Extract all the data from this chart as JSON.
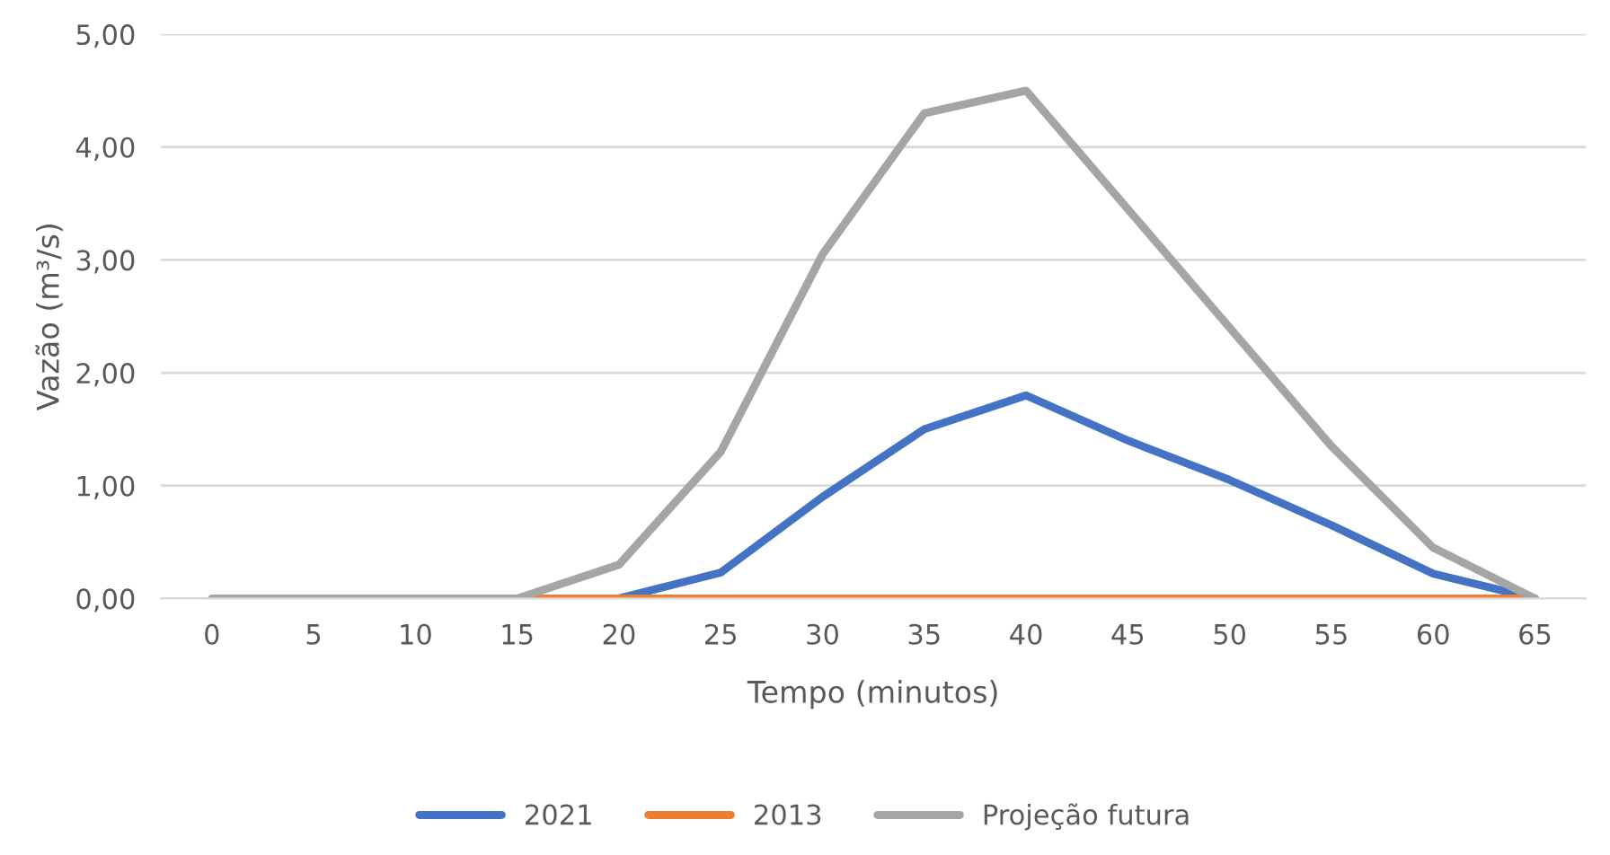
{
  "chart_data": {
    "type": "line",
    "xlabel": "Tempo (minutos)",
    "ylabel": "Vazão (m³/s)",
    "categories": [
      "0",
      "5",
      "10",
      "15",
      "20",
      "25",
      "30",
      "35",
      "40",
      "45",
      "50",
      "55",
      "60",
      "65"
    ],
    "series": [
      {
        "name": "2021",
        "color": "#4472c4",
        "values": [
          null,
          null,
          null,
          0,
          0,
          0.23,
          0.9,
          1.5,
          1.8,
          1.4,
          1.05,
          0.65,
          0.22,
          0
        ]
      },
      {
        "name": "2013",
        "color": "#ed7d31",
        "values": [
          null,
          null,
          null,
          0,
          0,
          0,
          0,
          0,
          0,
          0,
          0,
          0,
          0,
          0
        ]
      },
      {
        "name": "Projeção futura",
        "color": "#a5a5a5",
        "values": [
          0,
          0,
          0,
          0,
          0.3,
          1.3,
          3.05,
          4.3,
          4.5,
          3.45,
          2.4,
          1.35,
          0.45,
          0
        ]
      }
    ],
    "ylim": [
      0,
      5
    ],
    "yticks": [
      {
        "value": 0,
        "label": "0,00"
      },
      {
        "value": 1,
        "label": "1,00"
      },
      {
        "value": 2,
        "label": "2,00"
      },
      {
        "value": 3,
        "label": "3,00"
      },
      {
        "value": 4,
        "label": "4,00"
      },
      {
        "value": 5,
        "label": "5,00"
      }
    ],
    "grid": "y",
    "legend": "bottom",
    "marker": "none",
    "line_style": "solid"
  }
}
